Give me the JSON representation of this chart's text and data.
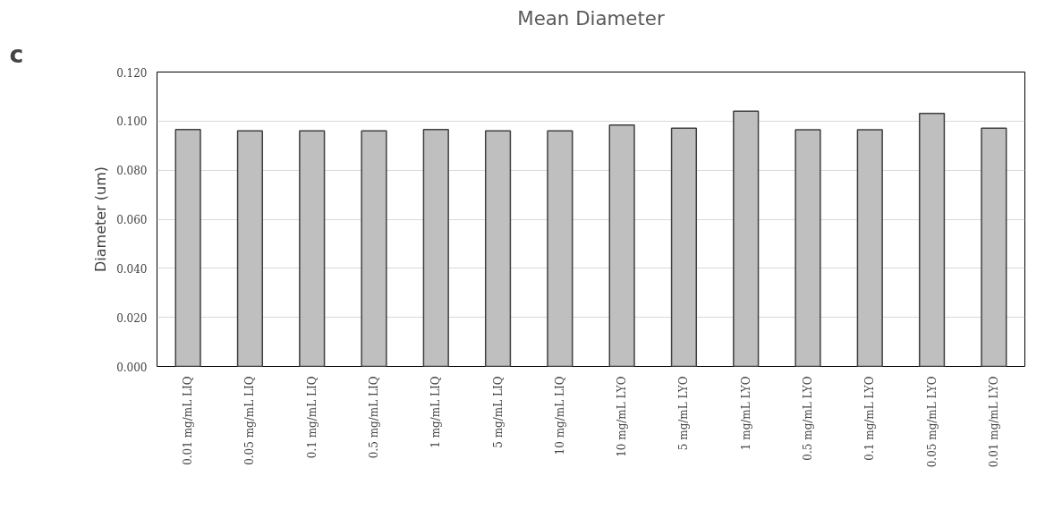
{
  "chart_data": {
    "type": "bar",
    "title": "Mean Diameter",
    "ylabel": "Diameter (um)",
    "categories": [
      "0.01 mg/mL LIQ",
      "0.05 mg/mL LIQ",
      "0.1 mg/mL LIQ",
      "0.5 mg/mL LIQ",
      "1 mg/mL LIQ",
      "5 mg/mL LIQ",
      "10 mg/mL LIQ",
      "10 mg/mL LYO",
      "5 mg/mL LYO",
      "1 mg/mL LYO",
      "0.5 mg/mL LYO",
      "0.1 mg/mL LYO",
      "0.05 mg/mL LYO",
      "0.01 mg/mL LYO"
    ],
    "values": [
      0.0966,
      0.096,
      0.096,
      0.096,
      0.0966,
      0.096,
      0.096,
      0.0984,
      0.0971,
      0.104,
      0.0965,
      0.0965,
      0.1031,
      0.0971
    ],
    "color": "#bfbfbf",
    "ylim": [
      0,
      0.12
    ],
    "yticks": [
      {
        "value": 0,
        "label": "0.000"
      },
      {
        "value": 0.02,
        "label": "0.020"
      },
      {
        "value": 0.04,
        "label": "0.040"
      },
      {
        "value": 0.06,
        "label": "0.060"
      },
      {
        "value": 0.08,
        "label": "0.080"
      },
      {
        "value": 0.1,
        "label": "0.100"
      },
      {
        "value": 0.12,
        "label": "0.120"
      }
    ],
    "grid": "y",
    "annotations": [
      "c"
    ]
  }
}
